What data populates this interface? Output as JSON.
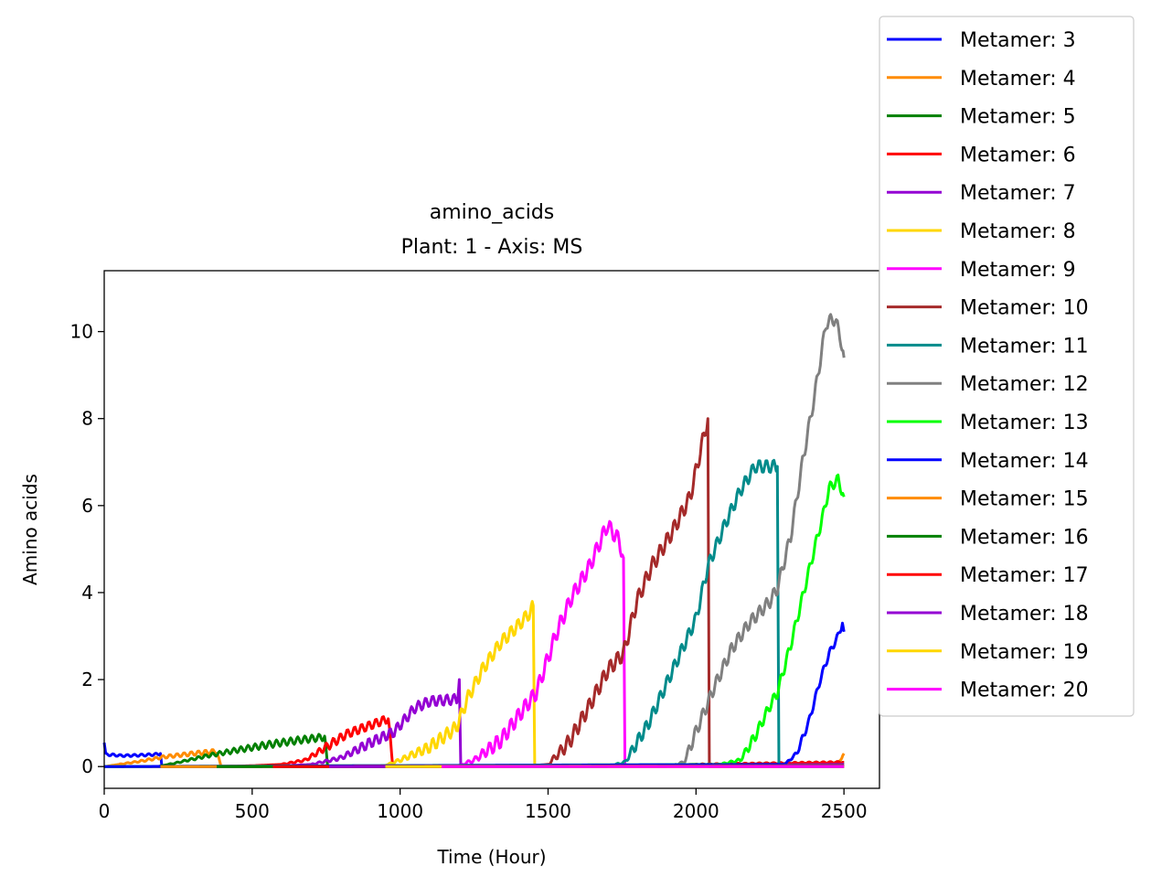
{
  "chart_data": {
    "type": "line",
    "title": "amino_acids",
    "subtitle": "Plant: 1 - Axis: MS",
    "xlabel": "Time (Hour)",
    "ylabel": "Amino acids",
    "xlim": [
      0,
      2620
    ],
    "ylim": [
      -0.5,
      11.4
    ],
    "xticks": [
      0,
      500,
      1000,
      1500,
      2000,
      2500
    ],
    "yticks": [
      0,
      2,
      4,
      6,
      8,
      10
    ],
    "grid": false,
    "legend_position": "outside-right-top",
    "series": [
      {
        "name": "Metamer: 3",
        "color": "#0000ff",
        "wave": 0.05,
        "points": [
          [
            0,
            0.55
          ],
          [
            5,
            0.28
          ],
          [
            60,
            0.25
          ],
          [
            120,
            0.26
          ],
          [
            175,
            0.28
          ],
          [
            190,
            0.3
          ],
          [
            195,
            0.0
          ],
          [
            960,
            0.0
          ],
          [
            1500,
            0.02
          ],
          [
            2000,
            0.04
          ],
          [
            2500,
            0.05
          ]
        ]
      },
      {
        "name": "Metamer: 4",
        "color": "#ff8c00",
        "wave": 0.08,
        "points": [
          [
            0,
            0.0
          ],
          [
            50,
            0.05
          ],
          [
            120,
            0.12
          ],
          [
            200,
            0.22
          ],
          [
            300,
            0.3
          ],
          [
            380,
            0.35
          ],
          [
            395,
            0.0
          ],
          [
            1100,
            0.0
          ],
          [
            1700,
            0.02
          ],
          [
            2200,
            0.05
          ],
          [
            2480,
            0.08
          ],
          [
            2500,
            0.3
          ]
        ]
      },
      {
        "name": "Metamer: 5",
        "color": "#008000",
        "wave": 0.08,
        "points": [
          [
            0,
            0.0
          ],
          [
            180,
            0.0
          ],
          [
            240,
            0.08
          ],
          [
            350,
            0.25
          ],
          [
            450,
            0.38
          ],
          [
            550,
            0.5
          ],
          [
            650,
            0.6
          ],
          [
            745,
            0.68
          ],
          [
            755,
            0.0
          ],
          [
            1200,
            0.0
          ],
          [
            1800,
            0.03
          ],
          [
            2500,
            0.1
          ]
        ]
      },
      {
        "name": "Metamer: 6",
        "color": "#ff0000",
        "wave": 0.1,
        "points": [
          [
            0,
            0.0
          ],
          [
            380,
            0.0
          ],
          [
            500,
            0.02
          ],
          [
            600,
            0.05
          ],
          [
            680,
            0.15
          ],
          [
            750,
            0.45
          ],
          [
            820,
            0.75
          ],
          [
            900,
            0.95
          ],
          [
            960,
            1.1
          ],
          [
            975,
            0.0
          ],
          [
            1400,
            0.0
          ],
          [
            2000,
            0.05
          ],
          [
            2500,
            0.1
          ]
        ]
      },
      {
        "name": "Metamer: 7",
        "color": "#9400d3",
        "wave": 0.12,
        "points": [
          [
            0,
            0.0
          ],
          [
            560,
            0.0
          ],
          [
            700,
            0.05
          ],
          [
            800,
            0.2
          ],
          [
            900,
            0.55
          ],
          [
            980,
            0.8
          ],
          [
            1050,
            1.35
          ],
          [
            1100,
            1.5
          ],
          [
            1195,
            1.55
          ],
          [
            1200,
            2.0
          ],
          [
            1205,
            0.0
          ],
          [
            2500,
            0.05
          ]
        ]
      },
      {
        "name": "Metamer: 8",
        "color": "#ffd700",
        "wave": 0.15,
        "points": [
          [
            0,
            0.0
          ],
          [
            940,
            0.0
          ],
          [
            1000,
            0.15
          ],
          [
            1100,
            0.45
          ],
          [
            1190,
            0.9
          ],
          [
            1230,
            1.6
          ],
          [
            1280,
            2.25
          ],
          [
            1340,
            2.85
          ],
          [
            1400,
            3.25
          ],
          [
            1440,
            3.55
          ],
          [
            1450,
            3.7
          ],
          [
            1455,
            0.0
          ],
          [
            2500,
            0.0
          ]
        ]
      },
      {
        "name": "Metamer: 9",
        "color": "#ff00ff",
        "wave": 0.18,
        "points": [
          [
            0,
            0.0
          ],
          [
            1190,
            0.0
          ],
          [
            1250,
            0.15
          ],
          [
            1340,
            0.6
          ],
          [
            1420,
            1.35
          ],
          [
            1460,
            1.7
          ],
          [
            1530,
            3.1
          ],
          [
            1580,
            3.9
          ],
          [
            1640,
            4.6
          ],
          [
            1700,
            5.55
          ],
          [
            1740,
            5.2
          ],
          [
            1755,
            4.8
          ],
          [
            1760,
            0.0
          ],
          [
            2500,
            0.0
          ]
        ]
      },
      {
        "name": "Metamer: 10",
        "color": "#a52a2a",
        "wave": 0.18,
        "points": [
          [
            0,
            0.0
          ],
          [
            1400,
            0.0
          ],
          [
            1500,
            0.05
          ],
          [
            1570,
            0.55
          ],
          [
            1640,
            1.4
          ],
          [
            1700,
            2.2
          ],
          [
            1740,
            2.5
          ],
          [
            1755,
            2.6
          ],
          [
            1800,
            3.8
          ],
          [
            1850,
            4.6
          ],
          [
            1920,
            5.4
          ],
          [
            1980,
            6.2
          ],
          [
            2030,
            7.7
          ],
          [
            2040,
            8.0
          ],
          [
            2045,
            0.0
          ],
          [
            2500,
            0.0
          ]
        ]
      },
      {
        "name": "Metamer: 11",
        "color": "#008b8b",
        "wave": 0.15,
        "points": [
          [
            0,
            0.0
          ],
          [
            1700,
            0.0
          ],
          [
            1760,
            0.1
          ],
          [
            1840,
            1.0
          ],
          [
            1900,
            1.9
          ],
          [
            1960,
            2.8
          ],
          [
            2000,
            3.4
          ],
          [
            2040,
            4.6
          ],
          [
            2100,
            5.6
          ],
          [
            2150,
            6.35
          ],
          [
            2200,
            6.9
          ],
          [
            2240,
            6.9
          ],
          [
            2275,
            6.9
          ],
          [
            2280,
            0.0
          ],
          [
            2500,
            0.0
          ]
        ]
      },
      {
        "name": "Metamer: 12",
        "color": "#808080",
        "wave": 0.15,
        "points": [
          [
            0,
            0.0
          ],
          [
            1900,
            0.0
          ],
          [
            1960,
            0.1
          ],
          [
            2000,
            0.8
          ],
          [
            2060,
            1.8
          ],
          [
            2120,
            2.7
          ],
          [
            2180,
            3.3
          ],
          [
            2250,
            3.8
          ],
          [
            2275,
            4.1
          ],
          [
            2320,
            5.3
          ],
          [
            2360,
            7.0
          ],
          [
            2400,
            8.5
          ],
          [
            2440,
            10.2
          ],
          [
            2470,
            10.3
          ],
          [
            2490,
            9.8
          ],
          [
            2500,
            9.4
          ]
        ]
      },
      {
        "name": "Metamer: 13",
        "color": "#00ff00",
        "wave": 0.12,
        "points": [
          [
            0,
            0.0
          ],
          [
            2080,
            0.05
          ],
          [
            2150,
            0.15
          ],
          [
            2200,
            0.7
          ],
          [
            2250,
            1.4
          ],
          [
            2275,
            1.7
          ],
          [
            2320,
            2.8
          ],
          [
            2360,
            3.9
          ],
          [
            2400,
            5.0
          ],
          [
            2430,
            5.8
          ],
          [
            2450,
            6.4
          ],
          [
            2480,
            6.6
          ],
          [
            2500,
            6.2
          ]
        ]
      },
      {
        "name": "Metamer: 14",
        "color": "#0000ff",
        "wave": 0.08,
        "points": [
          [
            0,
            0.0
          ],
          [
            2300,
            0.05
          ],
          [
            2340,
            0.3
          ],
          [
            2380,
            1.0
          ],
          [
            2420,
            2.0
          ],
          [
            2450,
            2.6
          ],
          [
            2480,
            3.0
          ],
          [
            2495,
            3.3
          ],
          [
            2500,
            3.1
          ]
        ]
      },
      {
        "name": "Metamer: 15",
        "color": "#ff8c00",
        "wave": 0.0,
        "points": [
          [
            190,
            0.0
          ],
          [
            2500,
            0.02
          ]
        ]
      },
      {
        "name": "Metamer: 16",
        "color": "#008000",
        "wave": 0.0,
        "points": [
          [
            380,
            0.0
          ],
          [
            2500,
            0.02
          ]
        ]
      },
      {
        "name": "Metamer: 17",
        "color": "#ff0000",
        "wave": 0.0,
        "points": [
          [
            570,
            0.0
          ],
          [
            2500,
            0.01
          ]
        ]
      },
      {
        "name": "Metamer: 18",
        "color": "#9400d3",
        "wave": 0.0,
        "points": [
          [
            760,
            0.0
          ],
          [
            2500,
            0.01
          ]
        ]
      },
      {
        "name": "Metamer: 19",
        "color": "#ffd700",
        "wave": 0.0,
        "points": [
          [
            950,
            0.0
          ],
          [
            2500,
            0.0
          ]
        ]
      },
      {
        "name": "Metamer: 20",
        "color": "#ff00ff",
        "wave": 0.0,
        "points": [
          [
            1140,
            0.0
          ],
          [
            2500,
            0.0
          ]
        ]
      }
    ]
  }
}
